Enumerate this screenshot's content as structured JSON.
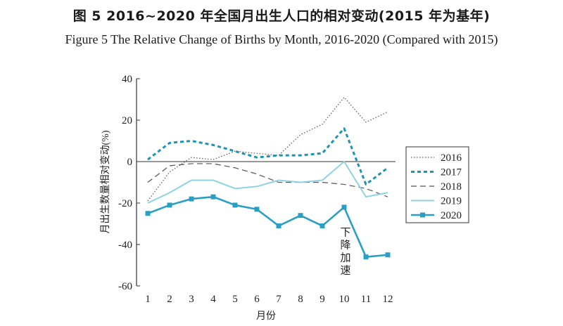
{
  "title_cn": "图 5   2016~2020 年全国月出生人口的相对变动(2015 年为基年)",
  "title_en": "Figure 5   The Relative Change of Births by Month, 2016-2020 (Compared with 2015)",
  "colors": {
    "axis": "#333333",
    "s2016": "#555555",
    "s2017": "#1f93b3",
    "s2018": "#555555",
    "s2019": "#8fd3e2",
    "s2020": "#2a9fc4"
  },
  "chart_data": {
    "type": "line",
    "xlabel": "月份",
    "ylabel": "月出生数量相对变动(%)",
    "categories": [
      "1",
      "2",
      "3",
      "4",
      "5",
      "6",
      "7",
      "8",
      "9",
      "10",
      "11",
      "12"
    ],
    "ylim": [
      -60,
      40
    ],
    "yticks": [
      "40",
      "20",
      "0",
      "-20",
      "-40",
      "-60"
    ],
    "legend_position": "right",
    "annotation": {
      "text": "下降加速",
      "month": 10,
      "value": -31
    },
    "series": [
      {
        "name": "2016",
        "style": "dotted",
        "values": [
          -19,
          -5,
          2,
          1,
          5,
          4,
          3,
          13,
          18,
          31,
          19,
          24
        ]
      },
      {
        "name": "2017",
        "style": "dashed-thick",
        "values": [
          1,
          9,
          10,
          8,
          5,
          2,
          3,
          3,
          4,
          16,
          -11,
          -3
        ]
      },
      {
        "name": "2018",
        "style": "dashed",
        "values": [
          -10,
          -2,
          -1,
          -1,
          -3,
          -6,
          -10,
          -10,
          -10,
          -11,
          -13,
          -17
        ]
      },
      {
        "name": "2019",
        "style": "solid-light",
        "values": [
          -20,
          -15,
          -9,
          -9,
          -13,
          -12,
          -9,
          -10,
          -9,
          0,
          -17,
          -15
        ]
      },
      {
        "name": "2020",
        "style": "solid-marker",
        "values": [
          -25,
          -21,
          -18,
          -17,
          -21,
          -23,
          -31,
          -26,
          -31,
          -22,
          -46,
          -45
        ]
      }
    ]
  }
}
